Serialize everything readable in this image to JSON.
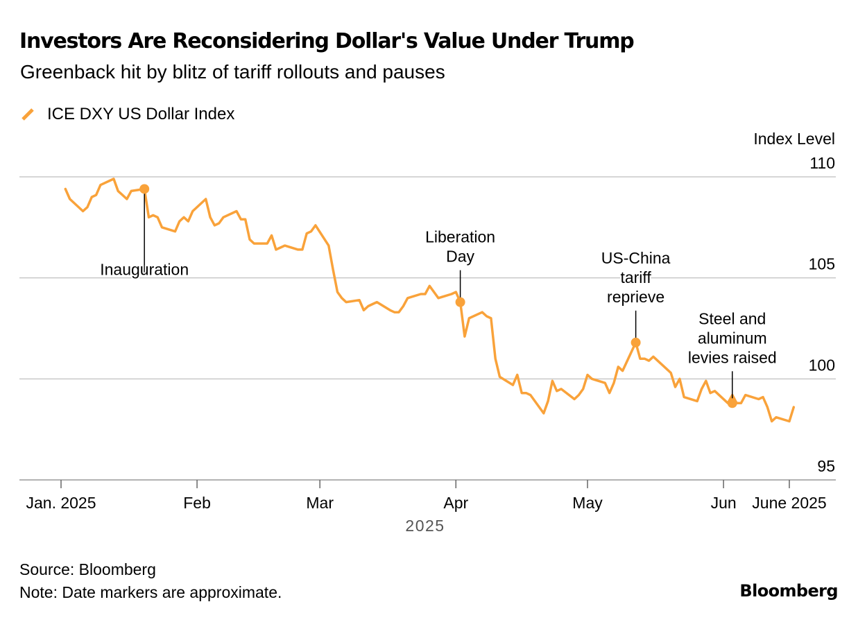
{
  "header": {
    "title": "Investors Are Reconsidering Dollar's Value Under Trump",
    "subtitle": "Greenback hit by blitz of tariff rollouts and pauses"
  },
  "legend": {
    "label": "ICE DXY US Dollar Index"
  },
  "footer": {
    "source": "Source: Bloomberg",
    "note": "Note: Date markers are approximate.",
    "brand": "Bloomberg"
  },
  "colors": {
    "series": "#F9A23A",
    "axis": "#c8c8c8",
    "text": "#000000",
    "muted": "#555555"
  },
  "chart_data": {
    "type": "line",
    "title": "Investors Are Reconsidering Dollar's Value Under Trump",
    "subtitle": "Greenback hit by blitz of tariff rollouts and pauses",
    "ylabel": "Index Level",
    "xlabel": "2025",
    "ylim": [
      95,
      110
    ],
    "yticks": [
      110,
      105,
      100,
      95
    ],
    "y_axis_position": "right",
    "grid": "horizontal",
    "legend_position": "top-left",
    "x_ticks": [
      {
        "date": "2025-01-01",
        "label": "Jan. 2025"
      },
      {
        "date": "2025-02-01",
        "label": "Feb"
      },
      {
        "date": "2025-03-01",
        "label": "Mar"
      },
      {
        "date": "2025-04-01",
        "label": "Apr"
      },
      {
        "date": "2025-05-01",
        "label": "May"
      },
      {
        "date": "2025-06-01",
        "label": "Jun"
      },
      {
        "date": "2025-06-16",
        "label": "June 2025"
      }
    ],
    "series": [
      {
        "name": "ICE DXY US Dollar Index",
        "color": "#F9A23A",
        "points": [
          [
            "2025-01-02",
            109.4
          ],
          [
            "2025-01-03",
            108.9
          ],
          [
            "2025-01-06",
            108.3
          ],
          [
            "2025-01-07",
            108.5
          ],
          [
            "2025-01-08",
            109.0
          ],
          [
            "2025-01-09",
            109.1
          ],
          [
            "2025-01-10",
            109.6
          ],
          [
            "2025-01-13",
            109.9
          ],
          [
            "2025-01-14",
            109.3
          ],
          [
            "2025-01-15",
            109.1
          ],
          [
            "2025-01-16",
            108.9
          ],
          [
            "2025-01-17",
            109.3
          ],
          [
            "2025-01-20",
            109.4
          ],
          [
            "2025-01-21",
            108.0
          ],
          [
            "2025-01-22",
            108.1
          ],
          [
            "2025-01-23",
            108.0
          ],
          [
            "2025-01-24",
            107.5
          ],
          [
            "2025-01-27",
            107.3
          ],
          [
            "2025-01-28",
            107.8
          ],
          [
            "2025-01-29",
            108.0
          ],
          [
            "2025-01-30",
            107.8
          ],
          [
            "2025-01-31",
            108.3
          ],
          [
            "2025-02-03",
            108.9
          ],
          [
            "2025-02-04",
            108.0
          ],
          [
            "2025-02-05",
            107.6
          ],
          [
            "2025-02-06",
            107.7
          ],
          [
            "2025-02-07",
            108.0
          ],
          [
            "2025-02-10",
            108.3
          ],
          [
            "2025-02-11",
            107.9
          ],
          [
            "2025-02-12",
            107.9
          ],
          [
            "2025-02-13",
            106.9
          ],
          [
            "2025-02-14",
            106.7
          ],
          [
            "2025-02-17",
            106.7
          ],
          [
            "2025-02-18",
            107.1
          ],
          [
            "2025-02-19",
            106.4
          ],
          [
            "2025-02-20",
            106.5
          ],
          [
            "2025-02-21",
            106.6
          ],
          [
            "2025-02-24",
            106.4
          ],
          [
            "2025-02-25",
            106.4
          ],
          [
            "2025-02-26",
            107.2
          ],
          [
            "2025-02-27",
            107.3
          ],
          [
            "2025-02-28",
            107.6
          ],
          [
            "2025-03-03",
            106.6
          ],
          [
            "2025-03-04",
            105.4
          ],
          [
            "2025-03-05",
            104.3
          ],
          [
            "2025-03-06",
            104.0
          ],
          [
            "2025-03-07",
            103.8
          ],
          [
            "2025-03-10",
            103.9
          ],
          [
            "2025-03-11",
            103.4
          ],
          [
            "2025-03-12",
            103.6
          ],
          [
            "2025-03-13",
            103.7
          ],
          [
            "2025-03-14",
            103.8
          ],
          [
            "2025-03-17",
            103.4
          ],
          [
            "2025-03-18",
            103.3
          ],
          [
            "2025-03-19",
            103.3
          ],
          [
            "2025-03-20",
            103.6
          ],
          [
            "2025-03-21",
            104.0
          ],
          [
            "2025-03-24",
            104.2
          ],
          [
            "2025-03-25",
            104.2
          ],
          [
            "2025-03-26",
            104.6
          ],
          [
            "2025-03-27",
            104.3
          ],
          [
            "2025-03-28",
            104.0
          ],
          [
            "2025-03-31",
            104.2
          ],
          [
            "2025-04-01",
            104.3
          ],
          [
            "2025-04-02",
            103.8
          ],
          [
            "2025-04-03",
            102.1
          ],
          [
            "2025-04-04",
            103.0
          ],
          [
            "2025-04-07",
            103.3
          ],
          [
            "2025-04-08",
            103.1
          ],
          [
            "2025-04-09",
            103.0
          ],
          [
            "2025-04-10",
            101.0
          ],
          [
            "2025-04-11",
            100.1
          ],
          [
            "2025-04-14",
            99.7
          ],
          [
            "2025-04-15",
            100.2
          ],
          [
            "2025-04-16",
            99.3
          ],
          [
            "2025-04-17",
            99.3
          ],
          [
            "2025-04-18",
            99.2
          ],
          [
            "2025-04-21",
            98.3
          ],
          [
            "2025-04-22",
            98.9
          ],
          [
            "2025-04-23",
            99.9
          ],
          [
            "2025-04-24",
            99.4
          ],
          [
            "2025-04-25",
            99.5
          ],
          [
            "2025-04-28",
            99.0
          ],
          [
            "2025-04-29",
            99.2
          ],
          [
            "2025-04-30",
            99.5
          ],
          [
            "2025-05-01",
            100.2
          ],
          [
            "2025-05-02",
            100.0
          ],
          [
            "2025-05-05",
            99.8
          ],
          [
            "2025-05-06",
            99.3
          ],
          [
            "2025-05-07",
            99.8
          ],
          [
            "2025-05-08",
            100.6
          ],
          [
            "2025-05-09",
            100.4
          ],
          [
            "2025-05-12",
            101.8
          ],
          [
            "2025-05-13",
            101.0
          ],
          [
            "2025-05-14",
            101.0
          ],
          [
            "2025-05-15",
            100.9
          ],
          [
            "2025-05-16",
            101.1
          ],
          [
            "2025-05-19",
            100.5
          ],
          [
            "2025-05-20",
            100.3
          ],
          [
            "2025-05-21",
            99.6
          ],
          [
            "2025-05-22",
            100.0
          ],
          [
            "2025-05-23",
            99.1
          ],
          [
            "2025-05-26",
            98.9
          ],
          [
            "2025-05-27",
            99.5
          ],
          [
            "2025-05-28",
            99.9
          ],
          [
            "2025-05-29",
            99.3
          ],
          [
            "2025-05-30",
            99.4
          ],
          [
            "2025-06-02",
            98.8
          ],
          [
            "2025-06-03",
            99.2
          ],
          [
            "2025-06-04",
            98.8
          ],
          [
            "2025-06-05",
            98.8
          ],
          [
            "2025-06-06",
            99.2
          ],
          [
            "2025-06-09",
            99.0
          ],
          [
            "2025-06-10",
            99.1
          ],
          [
            "2025-06-11",
            98.6
          ],
          [
            "2025-06-12",
            97.9
          ],
          [
            "2025-06-13",
            98.1
          ],
          [
            "2025-06-16",
            97.9
          ],
          [
            "2025-06-17",
            98.6
          ]
        ]
      }
    ],
    "annotations": [
      {
        "date": "2025-01-20",
        "value": 109.4,
        "label": [
          "Inauguration"
        ],
        "position": "below"
      },
      {
        "date": "2025-04-02",
        "value": 103.8,
        "label": [
          "Liberation",
          "Day"
        ],
        "position": "above"
      },
      {
        "date": "2025-05-12",
        "value": 101.8,
        "label": [
          "US-China",
          "tariff",
          "reprieve"
        ],
        "position": "above"
      },
      {
        "date": "2025-06-03",
        "value": 98.8,
        "label": [
          "Steel and",
          "aluminum",
          "levies raised"
        ],
        "position": "above"
      }
    ]
  }
}
